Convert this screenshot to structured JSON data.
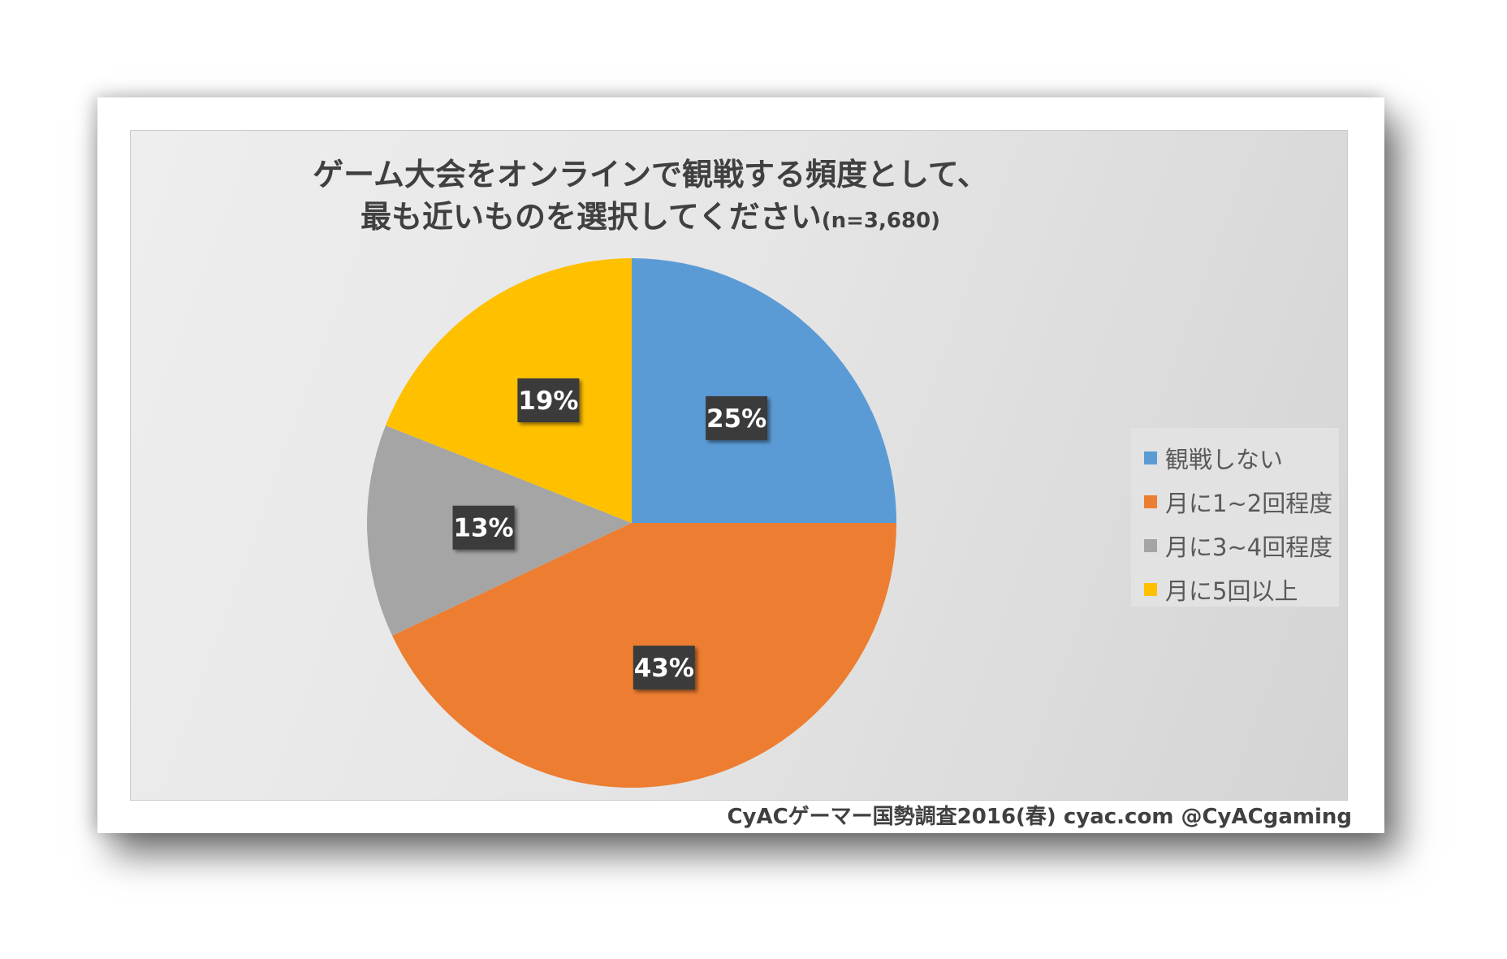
{
  "chart_data": {
    "type": "pie",
    "title_line1": "ゲーム大会をオンラインで観戦する頻度として、",
    "title_line2": "最も近いものを選択してください",
    "title_n": "(n=3,680)",
    "series": [
      {
        "name": "観戦しない",
        "value": 25,
        "label": "25%",
        "color": "#5B9BD5"
      },
      {
        "name": "月に1~2回程度",
        "value": 43,
        "label": "43%",
        "color": "#ED7D31"
      },
      {
        "name": "月に3~4回程度",
        "value": 13,
        "label": "13%",
        "color": "#A5A5A5"
      },
      {
        "name": "月に5回以上",
        "value": 19,
        "label": "19%",
        "color": "#FFC000"
      }
    ],
    "legend_position": "right"
  },
  "footer": "CyACゲーマー国勢調査2016(春) cyac.com @CyACgaming"
}
